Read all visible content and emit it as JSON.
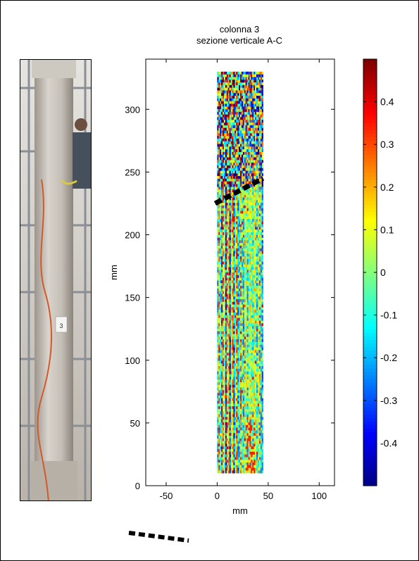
{
  "chart_data": {
    "type": "heatmap",
    "title": "colonna 3",
    "subtitle": "sezione verticale A-C",
    "xlabel": "mm",
    "ylabel": "mm",
    "xlim": [
      -70,
      115
    ],
    "ylim": [
      0,
      340
    ],
    "x_ticks": [
      -50,
      0,
      50,
      100
    ],
    "y_ticks": [
      0,
      50,
      100,
      150,
      200,
      250,
      300
    ],
    "data_extent": {
      "x": [
        0,
        45
      ],
      "y": [
        10,
        330
      ]
    },
    "colorbar": {
      "range": [
        -0.5,
        0.5
      ],
      "ticks": [
        -0.4,
        -0.3,
        -0.2,
        -0.1,
        0,
        0.1,
        0.2,
        0.3,
        0.4
      ],
      "colormap": "jet"
    },
    "annotations": [
      {
        "type": "dashed-line",
        "x": [
          -2,
          45
        ],
        "y": [
          225,
          245
        ]
      }
    ]
  },
  "legend_marker": {
    "type": "dashed-line"
  },
  "photo": {
    "sign_text": "3"
  }
}
